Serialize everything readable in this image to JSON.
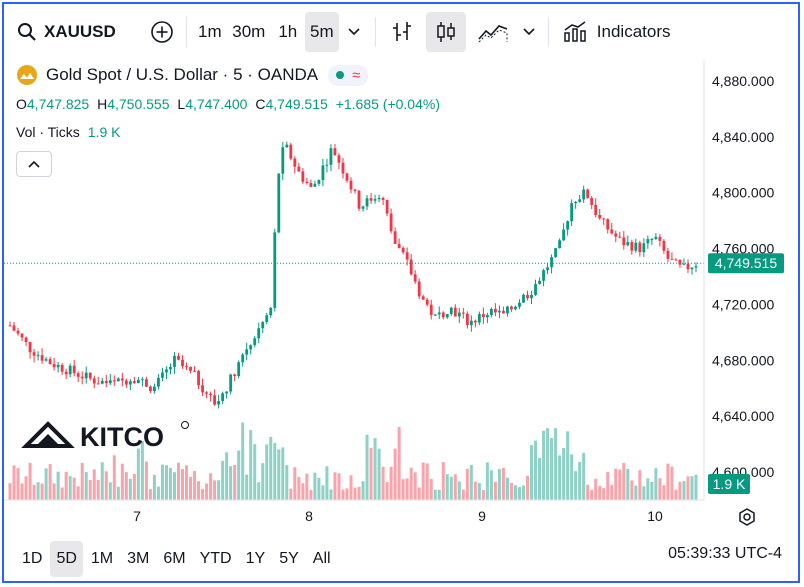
{
  "toolbar": {
    "symbol": "XAUUSD",
    "intervals": [
      "1m",
      "30m",
      "1h",
      "5m"
    ],
    "active_interval": "5m",
    "indicators_label": "Indicators"
  },
  "legend": {
    "title": "Gold Spot / U.S. Dollar · 5 · OANDA",
    "open_label": "O",
    "open": "4,747.825",
    "high_label": "H",
    "high": "4,750.555",
    "low_label": "L",
    "low": "4,747.400",
    "close_label": "C",
    "close": "4,749.515",
    "change": "+1.685 (+0.04%)",
    "vol_label": "Vol · Ticks",
    "vol_value": "1.9 K"
  },
  "watermark": "KITCO",
  "ranges": [
    "1D",
    "5D",
    "1M",
    "3M",
    "6M",
    "YTD",
    "1Y",
    "5Y",
    "All"
  ],
  "active_range": "5D",
  "clock": "05:39:33 UTC-4",
  "colors": {
    "up": "#089981",
    "down": "#f23645",
    "accent": "#2962ff",
    "price_tag": "#089981"
  },
  "chart_data": {
    "type": "candlestick",
    "x_ticks": [
      "7",
      "8",
      "9",
      "10"
    ],
    "y_ticks": [
      "4,600.000",
      "4,640.000",
      "4,680.000",
      "4,720.000",
      "4,760.000",
      "4,800.000",
      "4,840.000",
      "4,880.000"
    ],
    "ylim": [
      4580,
      4895
    ],
    "last_price": "4,749.515",
    "last_value": 4749.515,
    "volume_tag": "1.9 K",
    "price_path": [
      {
        "x": 0.0,
        "y": 4705
      },
      {
        "x": 0.03,
        "y": 4688
      },
      {
        "x": 0.06,
        "y": 4678
      },
      {
        "x": 0.09,
        "y": 4672
      },
      {
        "x": 0.12,
        "y": 4666
      },
      {
        "x": 0.15,
        "y": 4663
      },
      {
        "x": 0.18,
        "y": 4668
      },
      {
        "x": 0.21,
        "y": 4660
      },
      {
        "x": 0.24,
        "y": 4680
      },
      {
        "x": 0.27,
        "y": 4668
      },
      {
        "x": 0.3,
        "y": 4648
      },
      {
        "x": 0.32,
        "y": 4665
      },
      {
        "x": 0.34,
        "y": 4685
      },
      {
        "x": 0.36,
        "y": 4700
      },
      {
        "x": 0.38,
        "y": 4716
      },
      {
        "x": 0.385,
        "y": 4760
      },
      {
        "x": 0.39,
        "y": 4810
      },
      {
        "x": 0.4,
        "y": 4835
      },
      {
        "x": 0.42,
        "y": 4815
      },
      {
        "x": 0.44,
        "y": 4802
      },
      {
        "x": 0.47,
        "y": 4832
      },
      {
        "x": 0.49,
        "y": 4812
      },
      {
        "x": 0.51,
        "y": 4790
      },
      {
        "x": 0.54,
        "y": 4800
      },
      {
        "x": 0.56,
        "y": 4765
      },
      {
        "x": 0.58,
        "y": 4748
      },
      {
        "x": 0.6,
        "y": 4725
      },
      {
        "x": 0.62,
        "y": 4710
      },
      {
        "x": 0.64,
        "y": 4718
      },
      {
        "x": 0.67,
        "y": 4707
      },
      {
        "x": 0.7,
        "y": 4715
      },
      {
        "x": 0.72,
        "y": 4712
      },
      {
        "x": 0.74,
        "y": 4722
      },
      {
        "x": 0.76,
        "y": 4730
      },
      {
        "x": 0.78,
        "y": 4745
      },
      {
        "x": 0.8,
        "y": 4760
      },
      {
        "x": 0.82,
        "y": 4795
      },
      {
        "x": 0.84,
        "y": 4800
      },
      {
        "x": 0.86,
        "y": 4780
      },
      {
        "x": 0.89,
        "y": 4765
      },
      {
        "x": 0.92,
        "y": 4760
      },
      {
        "x": 0.94,
        "y": 4768
      },
      {
        "x": 0.96,
        "y": 4752
      },
      {
        "x": 0.98,
        "y": 4745
      },
      {
        "x": 1.0,
        "y": 4749.5
      }
    ]
  }
}
